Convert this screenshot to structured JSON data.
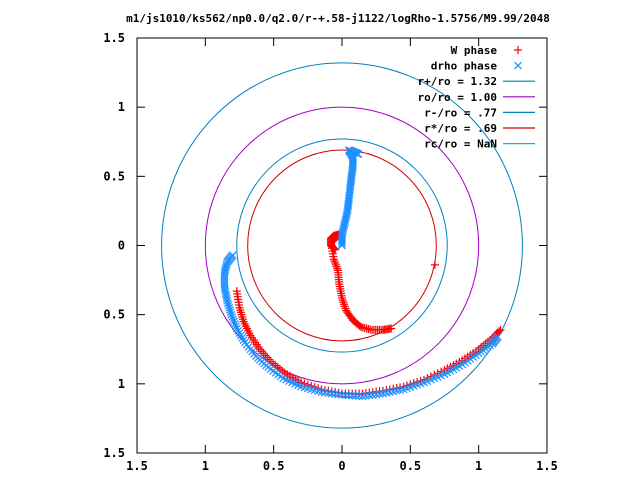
{
  "chart_data": {
    "type": "scatter",
    "title": "m1/js1010/ks562/np0.0/q2.0/r-+.58-j1122/logRho-1.5756/M9.99/2048",
    "xlabel": "",
    "ylabel": "",
    "xlim": [
      -1.5,
      1.5
    ],
    "ylim": [
      -1.5,
      1.5
    ],
    "x_tick_labels": [
      "1.5",
      "1",
      "0.5",
      "0",
      "0.5",
      "1",
      "1.5"
    ],
    "y_tick_labels": [
      "1.5",
      "1",
      "0.5",
      "0",
      "0.5",
      "1",
      "1.5"
    ],
    "x_ticks": [
      -1.5,
      -1,
      -0.5,
      0,
      0.5,
      1,
      1.5
    ],
    "y_ticks": [
      1.5,
      1,
      0.5,
      0,
      -0.5,
      -1,
      -1.5
    ],
    "grid": false,
    "legend_position": "top-right",
    "series": [
      {
        "name": "W phase",
        "marker": "+",
        "color": "#ff0000",
        "points": [
          [
            -0.77,
            -0.33
          ],
          [
            -0.75,
            -0.45
          ],
          [
            -0.72,
            -0.55
          ],
          [
            -0.67,
            -0.65
          ],
          [
            -0.6,
            -0.75
          ],
          [
            -0.52,
            -0.84
          ],
          [
            -0.42,
            -0.92
          ],
          [
            -0.3,
            -0.99
          ],
          [
            -0.15,
            -1.04
          ],
          [
            0.0,
            -1.07
          ],
          [
            0.15,
            -1.07
          ],
          [
            0.3,
            -1.05
          ],
          [
            0.45,
            -1.02
          ],
          [
            0.6,
            -0.97
          ],
          [
            0.75,
            -0.9
          ],
          [
            0.88,
            -0.83
          ],
          [
            1.0,
            -0.75
          ],
          [
            1.1,
            -0.67
          ],
          [
            1.16,
            -0.61
          ],
          [
            -0.05,
            -0.03
          ],
          [
            -0.08,
            -0.0
          ],
          [
            -0.08,
            0.05
          ],
          [
            -0.06,
            0.07
          ],
          [
            -0.02,
            0.08
          ],
          [
            -0.08,
            0.02
          ],
          [
            -0.06,
            -0.1
          ],
          [
            -0.03,
            -0.18
          ],
          [
            -0.02,
            -0.28
          ],
          [
            0.0,
            -0.38
          ],
          [
            0.03,
            -0.47
          ],
          [
            0.08,
            -0.54
          ],
          [
            0.14,
            -0.59
          ],
          [
            0.22,
            -0.61
          ],
          [
            0.3,
            -0.61
          ],
          [
            0.36,
            -0.6
          ],
          [
            0.68,
            -0.14
          ]
        ]
      },
      {
        "name": "drho phase",
        "marker": "x",
        "color": "#1e90ff",
        "points": [
          [
            0.0,
            0.0
          ],
          [
            0.0,
            0.08
          ],
          [
            0.02,
            0.16
          ],
          [
            0.04,
            0.25
          ],
          [
            0.05,
            0.33
          ],
          [
            0.06,
            0.42
          ],
          [
            0.07,
            0.5
          ],
          [
            0.08,
            0.58
          ],
          [
            0.08,
            0.64
          ],
          [
            0.05,
            0.69
          ],
          [
            0.1,
            0.67
          ],
          [
            0.12,
            0.66
          ],
          [
            -0.8,
            -0.07
          ],
          [
            -0.84,
            -0.12
          ],
          [
            -0.86,
            -0.2
          ],
          [
            -0.86,
            -0.3
          ],
          [
            -0.84,
            -0.4
          ],
          [
            -0.81,
            -0.5
          ],
          [
            -0.77,
            -0.6
          ],
          [
            -0.71,
            -0.7
          ],
          [
            -0.63,
            -0.8
          ],
          [
            -0.54,
            -0.88
          ],
          [
            -0.43,
            -0.96
          ],
          [
            -0.3,
            -1.02
          ],
          [
            -0.15,
            -1.06
          ],
          [
            0.0,
            -1.08
          ],
          [
            0.15,
            -1.09
          ],
          [
            0.3,
            -1.07
          ],
          [
            0.45,
            -1.04
          ],
          [
            0.6,
            -0.99
          ],
          [
            0.75,
            -0.93
          ],
          [
            0.88,
            -0.86
          ],
          [
            1.0,
            -0.78
          ],
          [
            1.1,
            -0.71
          ],
          [
            1.14,
            -0.66
          ]
        ]
      }
    ],
    "circles": [
      {
        "name": "r+/ro = 1.32",
        "radius": 1.32,
        "color": "#0080c0"
      },
      {
        "name": "ro/ro = 1.00",
        "radius": 1.0,
        "color": "#a000c0"
      },
      {
        "name": "r-/ro = .77",
        "radius": 0.77,
        "color": "#0080c0"
      },
      {
        "name": "r*/ro = .69",
        "radius": 0.69,
        "color": "#d00000"
      },
      {
        "name": "rc/ro = NaN",
        "radius": null,
        "color": "#00c0c0"
      }
    ]
  }
}
